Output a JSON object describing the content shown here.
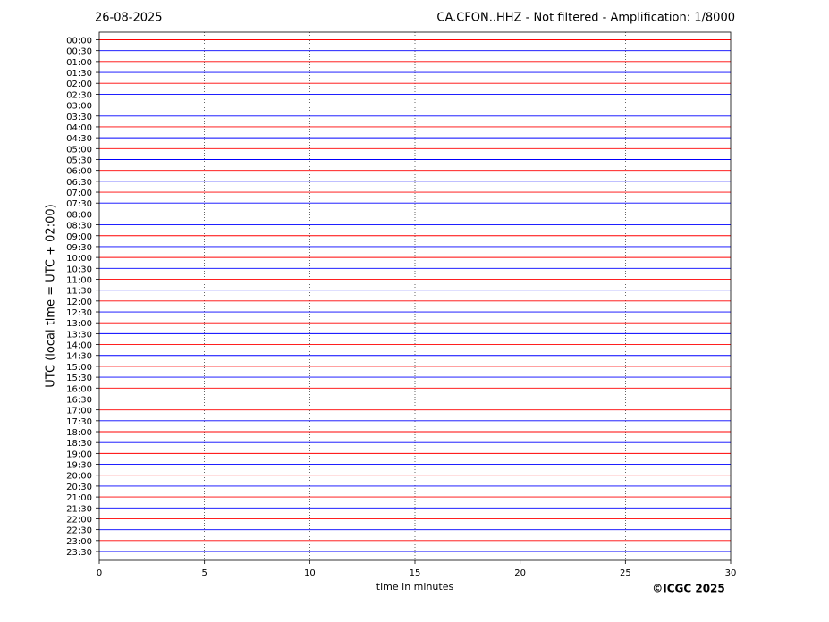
{
  "chart_data": {
    "type": "helicorder",
    "date": "26-08-2025",
    "title": "CA.CFON..HHZ - Not filtered - Amplification: 1/8000",
    "x_label": "time in minutes",
    "y_label": "UTC (local time = UTC + 02:00)",
    "copyright": "©ICGC 2025",
    "categories": [
      "00:00",
      "00:30",
      "01:00",
      "01:30",
      "02:00",
      "02:30",
      "03:00",
      "03:30",
      "04:00",
      "04:30",
      "05:00",
      "05:30",
      "06:00",
      "06:30",
      "07:00",
      "07:30",
      "08:00",
      "08:30",
      "09:00",
      "09:30",
      "10:00",
      "10:30",
      "11:00",
      "11:30",
      "12:00",
      "12:30",
      "13:00",
      "13:30",
      "14:00",
      "14:30",
      "15:00",
      "15:30",
      "16:00",
      "16:30",
      "17:00",
      "17:30",
      "18:00",
      "18:30",
      "19:00",
      "19:30",
      "20:00",
      "20:30",
      "21:00",
      "21:30",
      "22:00",
      "22:30",
      "23:00",
      "23:30"
    ],
    "trace_colors": [
      "#ff0000",
      "#0000ff"
    ],
    "xlim": [
      0,
      30
    ],
    "xticks": [
      0,
      5,
      10,
      15,
      20,
      25,
      30
    ],
    "grid": true
  }
}
